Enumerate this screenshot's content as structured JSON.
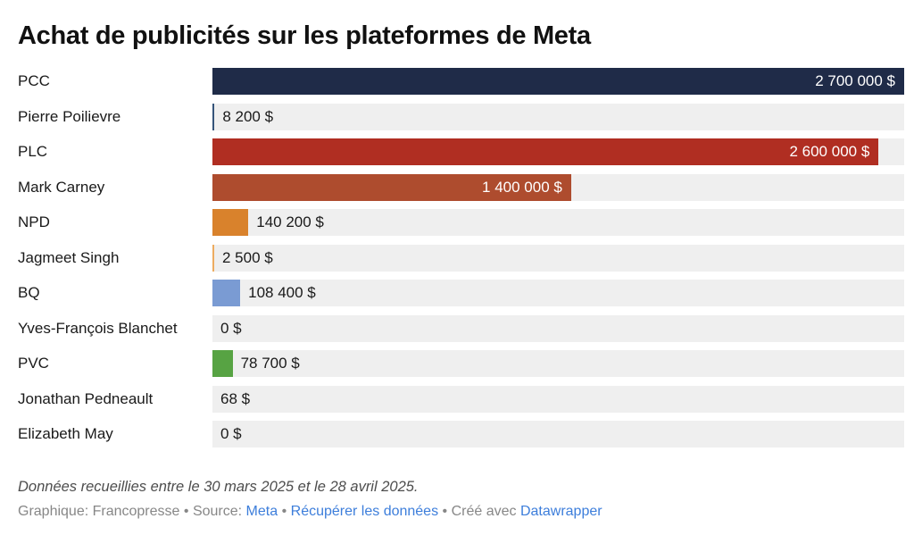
{
  "title": "Achat de publicités sur les plateformes de Meta",
  "chart_data": {
    "type": "bar",
    "orientation": "horizontal",
    "unit": "$",
    "max_value": 2700000,
    "grid": false,
    "legend": false,
    "row_background": "#efefef",
    "categories": [
      "PCC",
      "Pierre Poilievre",
      "PLC",
      "Mark Carney",
      "NPD",
      "Jagmeet Singh",
      "BQ",
      "Yves-François Blanchet",
      "PVC",
      "Jonathan Pedneault",
      "Elizabeth May"
    ],
    "values": [
      2700000,
      8200,
      2600000,
      1400000,
      140200,
      2500,
      108400,
      0,
      78700,
      68,
      0
    ],
    "rows": [
      {
        "label": "PCC",
        "value": 2700000,
        "value_label": "2 700 000 $",
        "color": "#1f2b48",
        "label_position": "inside"
      },
      {
        "label": "Pierre Poilievre",
        "value": 8200,
        "value_label": "8 200 $",
        "color": "#35547a",
        "label_position": "outside"
      },
      {
        "label": "PLC",
        "value": 2600000,
        "value_label": "2 600 000 $",
        "color": "#b02e22",
        "label_position": "inside"
      },
      {
        "label": "Mark Carney",
        "value": 1400000,
        "value_label": "1 400 000 $",
        "color": "#ae4c2e",
        "label_position": "inside"
      },
      {
        "label": "NPD",
        "value": 140200,
        "value_label": "140 200 $",
        "color": "#d9822c",
        "label_position": "outside"
      },
      {
        "label": "Jagmeet Singh",
        "value": 2500,
        "value_label": "2 500 $",
        "color": "#edac60",
        "label_position": "outside"
      },
      {
        "label": "BQ",
        "value": 108400,
        "value_label": "108 400 $",
        "color": "#7a9bd3",
        "label_position": "outside"
      },
      {
        "label": "Yves-François Blanchet",
        "value": 0,
        "value_label": "0 $",
        "label_position": "outside"
      },
      {
        "label": "PVC",
        "value": 78700,
        "value_label": "78 700 $",
        "color": "#57a343",
        "label_position": "outside"
      },
      {
        "label": "Jonathan Pedneault",
        "value": 68,
        "value_label": "68 $",
        "label_position": "outside"
      },
      {
        "label": "Elizabeth May",
        "value": 0,
        "value_label": "0 $",
        "label_position": "outside"
      }
    ]
  },
  "footer": {
    "note": "Données recueillies entre le 30 mars 2025 et le 28 avril 2025.",
    "byline": "Graphique: Francopresse",
    "separator": "•",
    "source_prefix": "Source:",
    "source_link": "Meta",
    "data_link": "Récupérer les données",
    "created_prefix": "Créé avec",
    "tool_link": "Datawrapper",
    "link_color": "#3d7edb"
  }
}
